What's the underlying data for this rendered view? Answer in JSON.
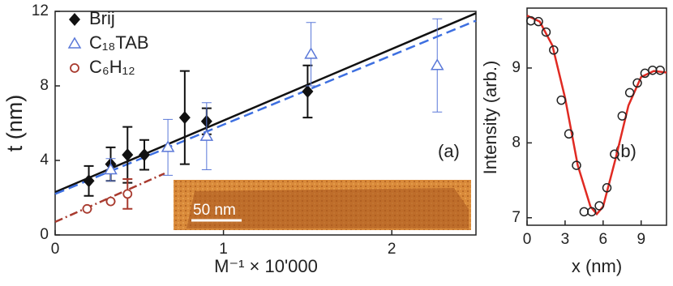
{
  "chart_data": [
    {
      "type": "scatter",
      "xlabel": "M⁻¹ × 10'000",
      "ylabel": "t (nm)",
      "annotation": "(a)",
      "inset_label": "50 nm",
      "xlim": [
        0,
        2.5
      ],
      "xticks": [
        0,
        1,
        2
      ],
      "ylim": [
        0,
        12
      ],
      "yticks": [
        0,
        4,
        8,
        12
      ],
      "legend": "upper left",
      "series": [
        {
          "name": "Brij",
          "color": "#111111",
          "marker": "diamond",
          "x": [
            0.2,
            0.33,
            0.43,
            0.53,
            0.77,
            0.9,
            1.5
          ],
          "values": [
            2.9,
            3.8,
            4.3,
            4.3,
            6.3,
            6.1,
            7.7
          ],
          "errors": [
            0.8,
            0.9,
            1.5,
            0.8,
            2.5,
            0.7,
            1.4
          ]
        },
        {
          "name": "C₁₈TAB",
          "color": "#5a78d8",
          "marker": "triangle",
          "x": [
            0.33,
            0.67,
            0.9,
            1.52,
            2.27
          ],
          "values": [
            3.5,
            4.7,
            5.3,
            9.7,
            9.1
          ],
          "errors": [
            0.6,
            1.5,
            1.8,
            1.7,
            2.5
          ]
        },
        {
          "name": "C₆H₁₂",
          "color": "#a83a2e",
          "marker": "circle",
          "x": [
            0.19,
            0.33,
            0.43
          ],
          "values": [
            1.4,
            1.8,
            2.2
          ],
          "errors": [
            0,
            0,
            0.8
          ]
        }
      ],
      "fits": [
        {
          "color": "#111111",
          "style": "solid",
          "x": [
            0,
            2.5
          ],
          "values": [
            2.3,
            11.9
          ]
        },
        {
          "color": "#3d6fe0",
          "style": "dashed",
          "x": [
            0,
            2.5
          ],
          "values": [
            2.2,
            11.5
          ]
        },
        {
          "color": "#a83a2e",
          "style": "dashdot",
          "x": [
            0,
            0.65
          ],
          "values": [
            0.7,
            3.3
          ]
        }
      ]
    },
    {
      "type": "scatter",
      "xlabel": "x (nm)",
      "ylabel": "Intensity (arb.)",
      "annotation": "(b)",
      "xlim": [
        0,
        11
      ],
      "xticks": [
        0,
        3,
        6,
        9
      ],
      "ylim": [
        6.9,
        9.8
      ],
      "yticks": [
        7,
        8,
        9
      ],
      "series": [
        {
          "color": "#222222",
          "marker": "open-circle",
          "x": [
            0.3,
            0.9,
            1.5,
            2.1,
            2.7,
            3.3,
            3.9,
            4.5,
            5.1,
            5.7,
            6.3,
            6.9,
            7.5,
            8.1,
            8.7,
            9.3,
            9.9,
            10.5
          ],
          "values": [
            9.63,
            9.62,
            9.48,
            9.24,
            8.57,
            8.12,
            7.7,
            7.08,
            7.08,
            7.16,
            7.4,
            7.85,
            8.36,
            8.67,
            8.8,
            8.93,
            8.97,
            8.97
          ]
        }
      ],
      "fits": [
        {
          "color": "#e02a22",
          "style": "solid",
          "x": [
            0,
            1,
            2,
            3,
            4,
            5,
            5.5,
            6,
            7,
            8,
            9,
            10,
            11
          ],
          "values": [
            9.7,
            9.62,
            9.3,
            8.6,
            7.7,
            7.15,
            7.05,
            7.15,
            7.8,
            8.5,
            8.88,
            8.96,
            8.94
          ]
        }
      ]
    }
  ]
}
